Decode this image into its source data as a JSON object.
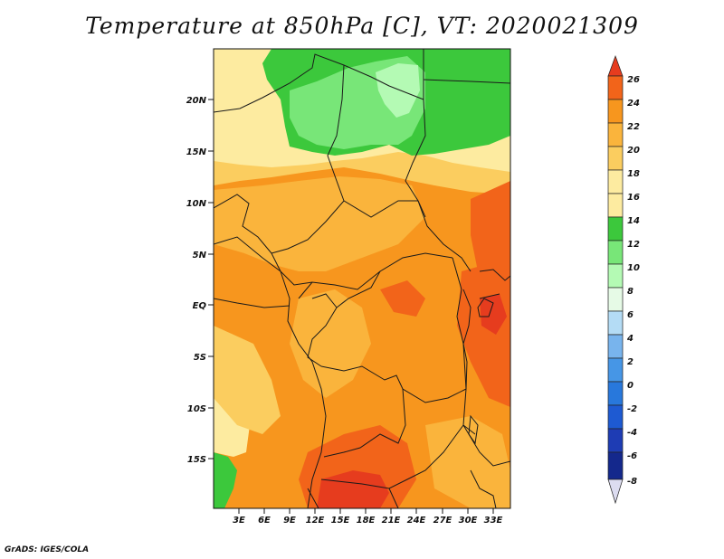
{
  "title": "Temperature at 850hPa [C], VT: 2020021309",
  "credit": "GrADS: IGES/COLA",
  "lat_labels": [
    "20N",
    "15N",
    "10N",
    "5N",
    "EQ",
    "5S",
    "10S",
    "15S"
  ],
  "lon_labels": [
    "3E",
    "6E",
    "9E",
    "12E",
    "15E",
    "18E",
    "21E",
    "24E",
    "27E",
    "30E",
    "33E"
  ],
  "colorbar": {
    "labels": [
      "26",
      "24",
      "22",
      "20",
      "18",
      "16",
      "14",
      "12",
      "10",
      "8",
      "6",
      "4",
      "2",
      "0",
      "-2",
      "-4",
      "-6",
      "-8"
    ],
    "colors": {
      "t24_26": "#e63c1e",
      "t22_24": "#f2641a",
      "t20_22": "#f7961e",
      "t18_20": "#fab43c",
      "t16_18": "#fbcd5f",
      "t14_16": "#fdeba0",
      "t12_14": "#3cc83c",
      "t10_12": "#78e678",
      "t8_10": "#b4fab4",
      "t6_8": "#e6fae6",
      "t4_6": "#b4dcf5",
      "t2_4": "#78b4ed",
      "t0_2": "#4696e6",
      "tm2_0": "#2878dc",
      "tm4_m2": "#1e5ad2",
      "tm6_m4": "#1e3cb4",
      "tm8_m6": "#14288c",
      "below_m8": "#dcdcf0"
    }
  }
}
